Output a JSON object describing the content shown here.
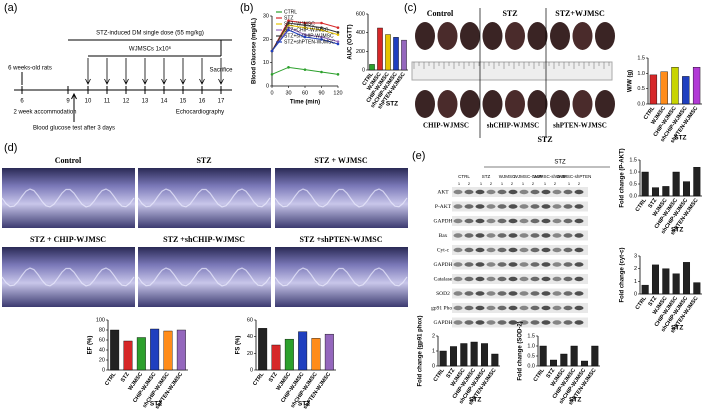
{
  "labels": {
    "a": "(a)",
    "b": "(b)",
    "c": "(c)",
    "d": "(d)",
    "e": "(e)"
  },
  "timeline": {
    "start": "6 weeks-old rats",
    "stz": "STZ-induced DM single dose (55 mg/kg)",
    "wjmsc": "WJMSCs 1x10⁶",
    "sacrifice": "Sacrifice",
    "weeks": [
      "6",
      "9",
      "10",
      "11",
      "12",
      "13",
      "14",
      "15",
      "16",
      "17"
    ],
    "accommodation": "2 week accommodation",
    "glucose_test": "Blood glucose test after 3 days",
    "echo": "Echocardiography"
  },
  "hearts": {
    "top": [
      "Control",
      "STZ",
      "STZ+WJMSC"
    ],
    "bottom": [
      "CHIP-WJMSC",
      "shCHIP-WJMSC",
      "shPTEN-WJMSC"
    ],
    "group": "STZ"
  },
  "echo": {
    "labels": [
      "Control",
      "STZ",
      "STZ + WJMSC",
      "STZ + CHIP-WJMSC",
      "STZ +shCHIP-WJMSC",
      "STZ +shPTEN-WJMSC"
    ]
  },
  "blot": {
    "group": "STZ",
    "columns": [
      "CTRL",
      "STZ",
      "WJMSC",
      "WJMSC-CHIP",
      "WJMSC-shCHIP",
      "WJMSC-shPTEN"
    ],
    "lanes": [
      "1",
      "2"
    ],
    "rows": [
      "AKT",
      "P-AKT",
      "GAPDH",
      "Bax",
      "Cyt-c",
      "GAPDH",
      "Catalase",
      "SOD2",
      "gp91 Phox",
      "GAPDH"
    ]
  },
  "chart_data": [
    {
      "type": "line",
      "ylabel": "Blood Glucose (mg/dL)",
      "xlabel": "Time (min)",
      "x": [
        0,
        30,
        60,
        90,
        120
      ],
      "xlim": [
        0,
        120
      ],
      "xticks": [
        0,
        30,
        60,
        90,
        120
      ],
      "ylim": [
        0,
        30
      ],
      "yticks": [
        0,
        10,
        20,
        30
      ],
      "series": [
        {
          "name": "CTRL",
          "color": "#2ca02c",
          "values": [
            5,
            8,
            7,
            6,
            5
          ]
        },
        {
          "name": "STZ",
          "color": "#d62728",
          "values": [
            15,
            28,
            27,
            27,
            25
          ]
        },
        {
          "name": "STZ+WJMSC",
          "color": "#e6c300",
          "values": [
            15,
            26,
            25,
            24,
            22
          ]
        },
        {
          "name": "STZ+CHIP-WJMSC",
          "color": "#9467bd",
          "values": [
            15,
            25,
            22,
            21,
            19
          ]
        },
        {
          "name": "STZ+shCHIP-WJMSC",
          "color": "#333333",
          "values": [
            15,
            27,
            26,
            25,
            23
          ]
        },
        {
          "name": "STZ+shPTEN-WJMSC",
          "color": "#1f3fbf",
          "values": [
            15,
            24,
            21,
            20,
            18
          ]
        }
      ]
    },
    {
      "type": "bar",
      "ylabel": "AUC (OGTT)",
      "group_label": "STZ",
      "categories": [
        "CTRL",
        "WJMSC",
        "CHIP-WJMSC",
        "shCHIP-WJMSC",
        "shPTEN-WJMSC"
      ],
      "values": [
        60,
        450,
        380,
        350,
        320
      ],
      "colors": [
        "#2ca02c",
        "#d62728",
        "#e6c300",
        "#1f3fbf",
        "#9467bd"
      ],
      "ylim": [
        0,
        600
      ],
      "yticks": [
        0,
        200,
        400,
        600
      ]
    },
    {
      "type": "bar",
      "ylabel": "W/W (g)",
      "group_label": "STZ",
      "categories": [
        "CTRL",
        "WJMSC",
        "CHIP-WJMSC",
        "shCHIP-WJMSC",
        "shPTEN-WJMSC"
      ],
      "values": [
        0.95,
        1.05,
        1.2,
        0.9,
        1.2
      ],
      "colors": [
        "#d62728",
        "#ff8c1a",
        "#c8d400",
        "#1f3fbf",
        "#b23ad6"
      ],
      "ylim": [
        0,
        1.5
      ],
      "yticks": [
        {
          "value": 0,
          "label": "0.0"
        },
        0.5,
        {
          "value": 1,
          "label": "1.0"
        },
        1.5
      ]
    },
    {
      "type": "bar",
      "ylabel": "EF (%)",
      "group_label": "STZ",
      "categories": [
        "CTRL",
        "STZ",
        "WJMSC",
        "CHIP-WJMSC",
        "shCHIP-WJMSC",
        "shPTEN-WJMSC"
      ],
      "values": [
        80,
        58,
        65,
        82,
        78,
        80
      ],
      "colors": [
        "#222222",
        "#d62728",
        "#2ca02c",
        "#1f3fbf",
        "#ff8c1a",
        "#9467bd"
      ],
      "ylim": [
        0,
        100
      ],
      "yticks": [
        0,
        20,
        40,
        60,
        80,
        100
      ]
    },
    {
      "type": "bar",
      "ylabel": "FS (%)",
      "group_label": "STZ",
      "categories": [
        "CTRL",
        "STZ",
        "WJMSC",
        "CHIP-WJMSC",
        "shCHIP-WJMSC",
        "shPTEN-WJMSC"
      ],
      "values": [
        50,
        30,
        37,
        46,
        38,
        43
      ],
      "colors": [
        "#222222",
        "#d62728",
        "#2ca02c",
        "#1f3fbf",
        "#ff8c1a",
        "#9467bd"
      ],
      "ylim": [
        0,
        60
      ],
      "yticks": [
        0,
        20,
        40,
        60
      ]
    },
    {
      "type": "bar",
      "ylabel": "Fold change (P-AKT)",
      "group_label": "STZ",
      "categories": [
        "CTRL",
        "STZ",
        "WJMSC",
        "CHIP-WJMSC",
        "shCHIP-WJMSC",
        "shPTEN-WJMSC"
      ],
      "values": [
        1.0,
        0.35,
        0.4,
        1.0,
        0.6,
        1.2
      ],
      "colors": [
        "#222222",
        "#222222",
        "#222222",
        "#222222",
        "#222222",
        "#222222"
      ],
      "ylim": [
        0,
        1.5
      ],
      "yticks": [
        {
          "value": 0,
          "label": "0.0"
        },
        0.5,
        {
          "value": 1,
          "label": "1.0"
        },
        1.5
      ]
    },
    {
      "type": "bar",
      "ylabel": "Fold change (cyt-c)",
      "group_label": "STZ",
      "categories": [
        "CTRL",
        "STZ",
        "WJMSC",
        "CHIP-WJMSC",
        "shCHIP-WJMSC",
        "shPTEN-WJMSC"
      ],
      "values": [
        0.7,
        2.3,
        2.0,
        1.6,
        2.5,
        0.9
      ],
      "colors": [
        "#222222",
        "#222222",
        "#222222",
        "#222222",
        "#222222",
        "#222222"
      ],
      "ylim": [
        0,
        3
      ],
      "yticks": [
        0,
        1,
        2,
        3
      ]
    },
    {
      "type": "bar",
      "ylabel": "Fold change (gp91 phox)",
      "group_label": "STZ",
      "categories": [
        "CTRL",
        "STZ",
        "WJMSC",
        "CHIP-WJMSC",
        "shCHIP-WJMSC",
        "shPTEN-WJMSC"
      ],
      "values": [
        1.0,
        1.3,
        1.5,
        1.6,
        1.5,
        0.8
      ],
      "colors": [
        "#222222",
        "#222222",
        "#222222",
        "#222222",
        "#222222",
        "#222222"
      ],
      "ylim": [
        0,
        2
      ],
      "yticks": [
        0,
        1,
        2
      ]
    },
    {
      "type": "bar",
      "ylabel": "Fold change (SOD-2)",
      "group_label": "STZ",
      "categories": [
        "CTRL",
        "STZ",
        "WJMSC",
        "CHIP-WJMSC",
        "shCHIP-WJMSC",
        "shPTEN-WJMSC"
      ],
      "values": [
        1.0,
        0.3,
        0.6,
        1.0,
        0.25,
        1.0
      ],
      "colors": [
        "#222222",
        "#222222",
        "#222222",
        "#222222",
        "#222222",
        "#222222"
      ],
      "ylim": [
        0,
        1.5
      ],
      "yticks": [
        {
          "value": 0,
          "label": "0.0"
        },
        0.5,
        {
          "value": 1,
          "label": "1.0"
        },
        1.5
      ]
    }
  ]
}
